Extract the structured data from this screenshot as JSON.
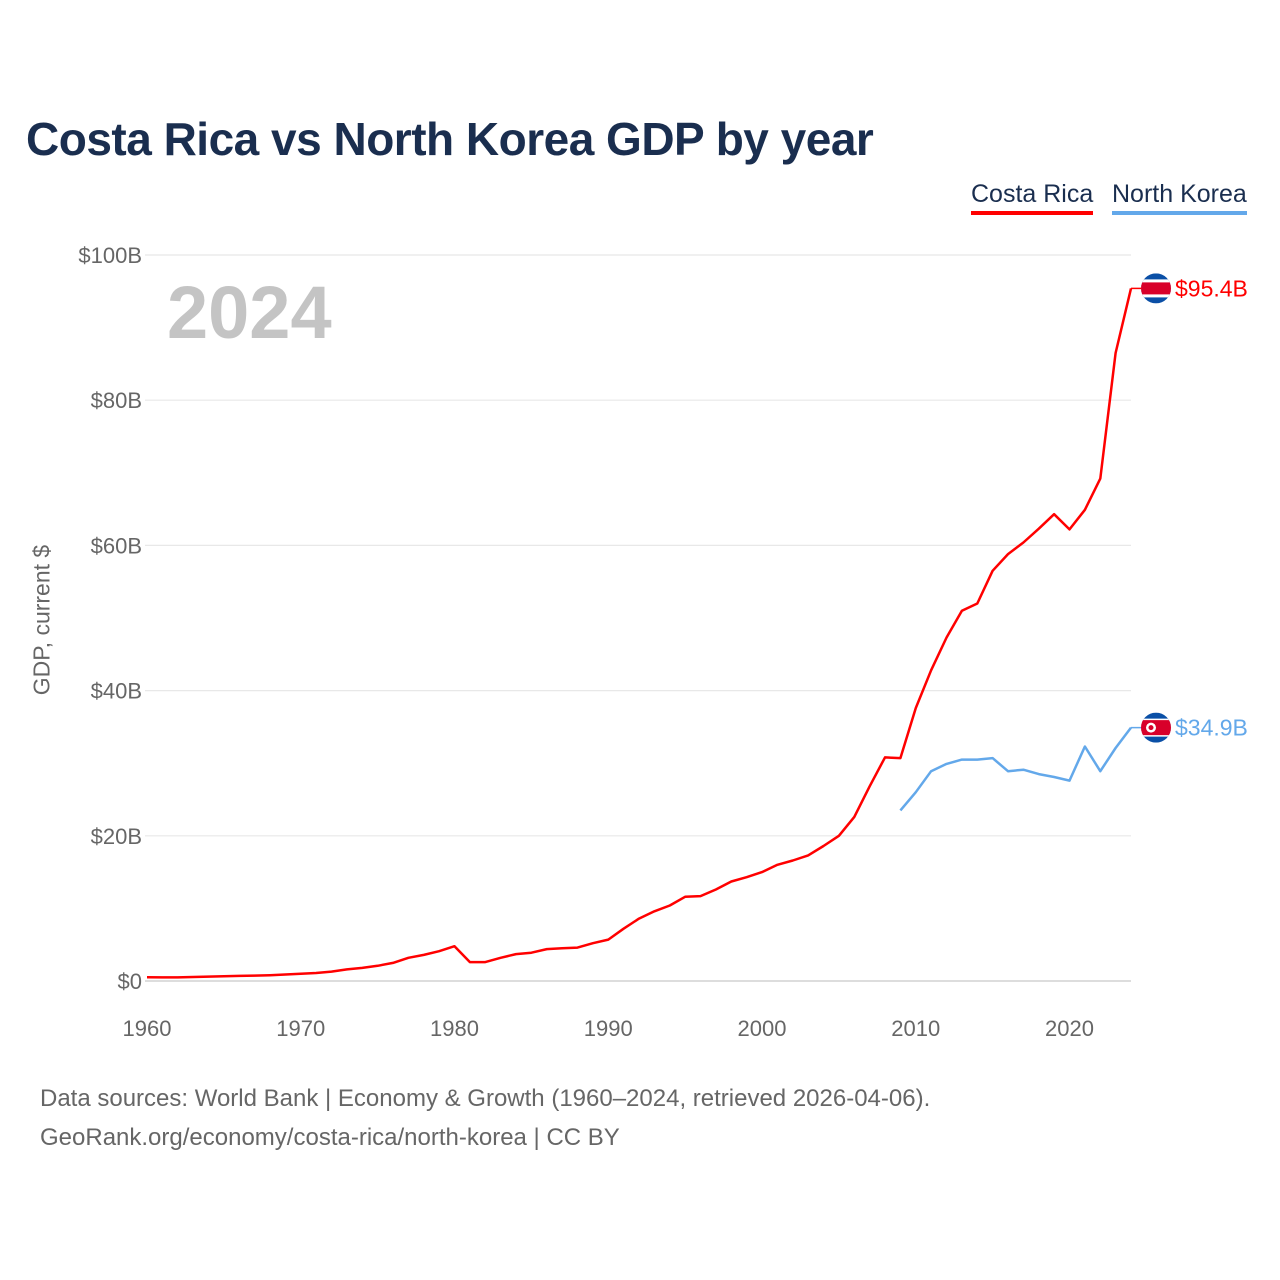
{
  "chart_data": {
    "type": "line",
    "title": "Costa Rica vs North Korea GDP by year",
    "ylabel": "GDP, current $",
    "xlabel": "",
    "year_label": "2024",
    "xlim": [
      1960,
      2024
    ],
    "ylim": [
      0,
      100
    ],
    "x_ticks": [
      1960,
      1970,
      1980,
      1990,
      2000,
      2010,
      2020
    ],
    "y_ticks": [
      0,
      20,
      40,
      60,
      80,
      100
    ],
    "y_tick_labels": [
      "$0",
      "$20B",
      "$40B",
      "$60B",
      "$80B",
      "$100B"
    ],
    "grid": true,
    "legend_position": "top-right",
    "series": [
      {
        "name": "Costa Rica",
        "color": "#ff0000",
        "end_label": "$95.4B",
        "flag": "costa-rica-flag",
        "start_year": 1960,
        "values": [
          0.51,
          0.5,
          0.5,
          0.55,
          0.6,
          0.65,
          0.7,
          0.75,
          0.8,
          0.9,
          1.0,
          1.1,
          1.3,
          1.6,
          1.8,
          2.1,
          2.5,
          3.2,
          3.6,
          4.1,
          4.8,
          2.6,
          2.6,
          3.2,
          3.7,
          3.9,
          4.4,
          4.5,
          4.6,
          5.2,
          5.7,
          7.2,
          8.6,
          9.6,
          10.4,
          11.6,
          11.7,
          12.6,
          13.7,
          14.3,
          15.0,
          16.0,
          16.6,
          17.3,
          18.6,
          20.0,
          22.6,
          26.8,
          30.8,
          30.7,
          37.6,
          42.8,
          47.3,
          51.0,
          52.0,
          56.5,
          58.8,
          60.4,
          62.3,
          64.3,
          62.2,
          64.9,
          69.2,
          86.5,
          95.4
        ]
      },
      {
        "name": "North Korea",
        "color": "#63a8ea",
        "end_label": "$34.9B",
        "flag": "north-korea-flag",
        "start_year": 2009,
        "values": [
          23.5,
          26.0,
          28.9,
          29.9,
          30.5,
          30.5,
          30.7,
          28.9,
          29.1,
          28.5,
          28.1,
          27.6,
          32.3,
          28.9,
          32.1,
          34.9
        ]
      }
    ]
  },
  "footer": {
    "line1": "Data sources: World Bank | Economy & Growth (1960–2024, retrieved 2026-04-06).",
    "line2": "GeoRank.org/economy/costa-rica/north-korea | CC BY"
  }
}
